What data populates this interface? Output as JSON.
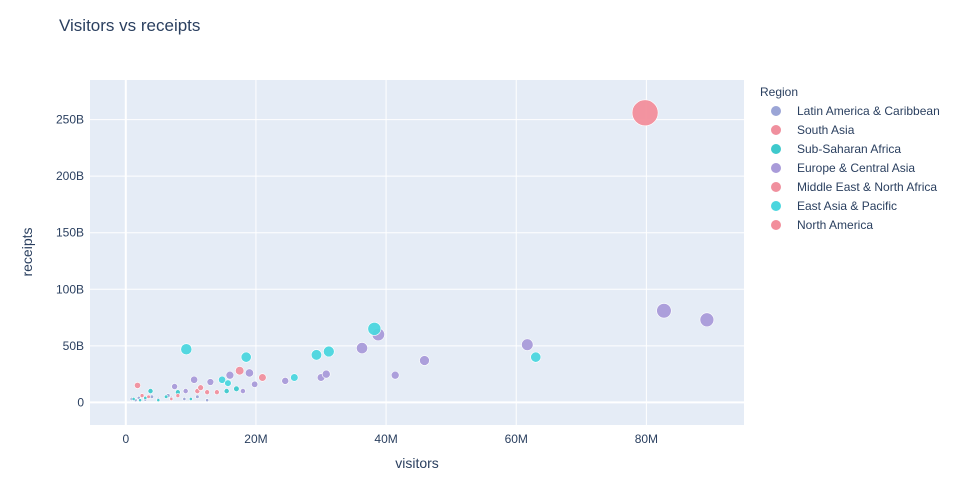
{
  "chart_data": {
    "type": "scatter",
    "title": "Visitors vs receipts",
    "xlabel": "visitors",
    "ylabel": "receipts",
    "xlim": [
      -5500000,
      95000000
    ],
    "ylim": [
      -20000000000,
      285000000000
    ],
    "x_ticks": [
      {
        "value": 0,
        "label": "0"
      },
      {
        "value": 20000000,
        "label": "20M"
      },
      {
        "value": 40000000,
        "label": "40M"
      },
      {
        "value": 60000000,
        "label": "60M"
      },
      {
        "value": 80000000,
        "label": "80M"
      }
    ],
    "y_ticks": [
      {
        "value": 0,
        "label": "0"
      },
      {
        "value": 50000000000,
        "label": "50B"
      },
      {
        "value": 100000000000,
        "label": "100B"
      },
      {
        "value": 150000000000,
        "label": "150B"
      },
      {
        "value": 200000000000,
        "label": "200B"
      },
      {
        "value": 250000000000,
        "label": "250B"
      }
    ],
    "grid": true,
    "legend": {
      "title": "Region",
      "position": "right"
    },
    "marker_size_encodes": "receipts",
    "series": [
      {
        "name": "Latin America & Caribbean",
        "color": "#9BA5D6",
        "points": [
          [
            900000,
            3000000000
          ],
          [
            1500000,
            2000000000
          ],
          [
            2000000,
            4000000000
          ],
          [
            3000000,
            2500000000
          ],
          [
            4000000,
            5000000000
          ],
          [
            5000000,
            3000000000
          ],
          [
            6500000,
            6000000000
          ],
          [
            7000000,
            4000000000
          ],
          [
            9000000,
            3000000000
          ],
          [
            11000000,
            5000000000
          ],
          [
            12500000,
            2000000000
          ]
        ]
      },
      {
        "name": "South Asia",
        "color": "#F0909E",
        "points": [
          [
            1800000,
            15000000000
          ],
          [
            2500000,
            6000000000
          ],
          [
            7000000,
            3000000000
          ],
          [
            11000000,
            10000000000
          ],
          [
            12500000,
            9000000000
          ]
        ]
      },
      {
        "name": "Sub-Saharan Africa",
        "color": "#3EC9CC",
        "points": [
          [
            1200000,
            3000000000
          ],
          [
            2200000,
            2000000000
          ],
          [
            3000000,
            4000000000
          ],
          [
            3800000,
            10000000000
          ],
          [
            5000000,
            2000000000
          ],
          [
            6200000,
            5000000000
          ],
          [
            8000000,
            9000000000
          ],
          [
            10000000,
            3000000000
          ],
          [
            15500000,
            10000000000
          ],
          [
            17000000,
            12000000000
          ]
        ]
      },
      {
        "name": "Europe & Central Asia",
        "color": "#A99BD9",
        "points": [
          [
            7500000,
            14000000000
          ],
          [
            9200000,
            10000000000
          ],
          [
            10500000,
            20000000000
          ],
          [
            13000000,
            18000000000
          ],
          [
            16000000,
            24000000000
          ],
          [
            18000000,
            10000000000
          ],
          [
            19000000,
            26000000000
          ],
          [
            19800000,
            16000000000
          ],
          [
            24500000,
            19000000000
          ],
          [
            30000000,
            22000000000
          ],
          [
            30800000,
            25000000000
          ],
          [
            36300000,
            48000000000
          ],
          [
            38800000,
            60000000000
          ],
          [
            41400000,
            24000000000
          ],
          [
            45900000,
            37000000000
          ],
          [
            61700000,
            51000000000
          ],
          [
            82700000,
            81000000000
          ],
          [
            89300000,
            73000000000
          ]
        ]
      },
      {
        "name": "Middle East & North Africa",
        "color": "#F0909E",
        "points": [
          [
            3500000,
            5000000000
          ],
          [
            8000000,
            6000000000
          ],
          [
            11500000,
            13000000000
          ],
          [
            14000000,
            9000000000
          ],
          [
            17500000,
            28000000000
          ],
          [
            21000000,
            22000000000
          ]
        ]
      },
      {
        "name": "East Asia & Pacific",
        "color": "#4BD6DE",
        "points": [
          [
            9300000,
            47000000000
          ],
          [
            14800000,
            20000000000
          ],
          [
            15700000,
            17000000000
          ],
          [
            18500000,
            40000000000
          ],
          [
            25900000,
            22000000000
          ],
          [
            29300000,
            42000000000
          ],
          [
            31200000,
            45000000000
          ],
          [
            38200000,
            65000000000
          ],
          [
            63000000,
            40000000000
          ]
        ]
      },
      {
        "name": "North America",
        "color": "#F28E9B",
        "points": [
          [
            79800000,
            256000000000
          ]
        ]
      }
    ]
  }
}
